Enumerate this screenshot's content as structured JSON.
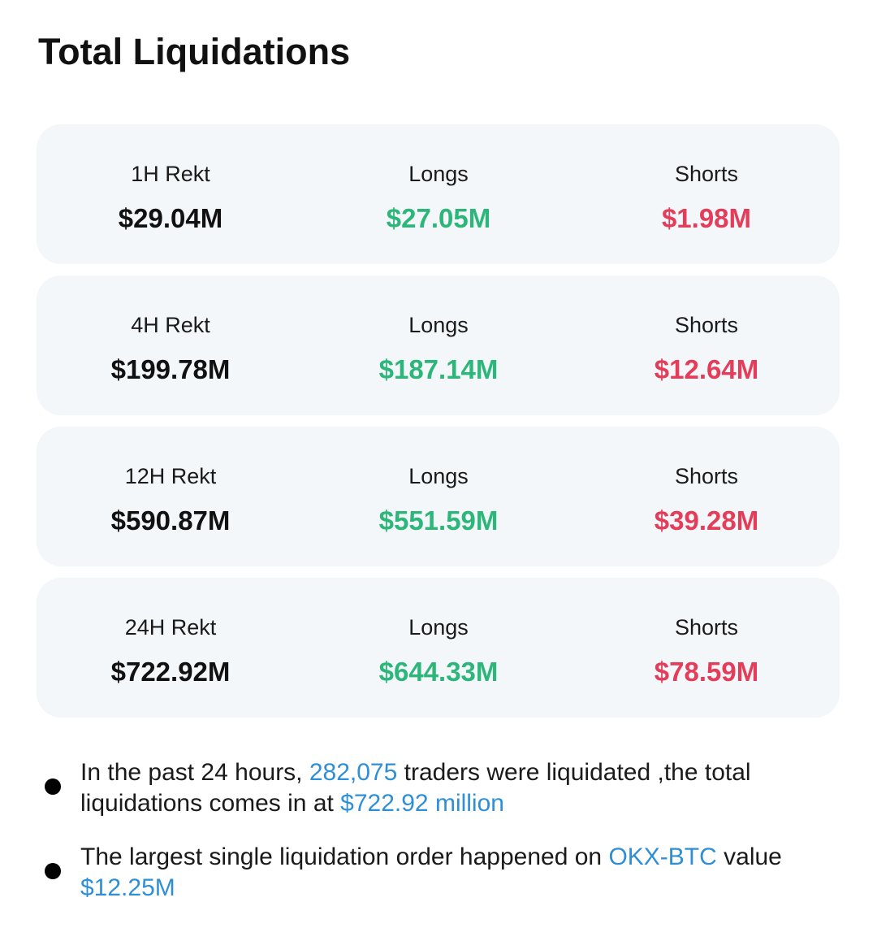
{
  "title": "Total Liquidations",
  "rows": [
    {
      "label": "1H Rekt",
      "total": "$29.04M",
      "longs_label": "Longs",
      "longs": "$27.05M",
      "shorts_label": "Shorts",
      "shorts": "$1.98M"
    },
    {
      "label": "4H Rekt",
      "total": "$199.78M",
      "longs_label": "Longs",
      "longs": "$187.14M",
      "shorts_label": "Shorts",
      "shorts": "$12.64M"
    },
    {
      "label": "12H Rekt",
      "total": "$590.87M",
      "longs_label": "Longs",
      "longs": "$551.59M",
      "shorts_label": "Shorts",
      "shorts": "$39.28M"
    },
    {
      "label": "24H Rekt",
      "total": "$722.92M",
      "longs_label": "Longs",
      "longs": "$644.33M",
      "shorts_label": "Shorts",
      "shorts": "$78.59M"
    }
  ],
  "notes": {
    "n1_a": "In the past 24 hours, ",
    "n1_traders": "282,075",
    "n1_b": " traders were liquidated ,the total liquidations comes in at ",
    "n1_amount": "$722.92 million",
    "n2_a": "The largest single liquidation order happened on ",
    "n2_market": "OKX-BTC",
    "n2_b": " value ",
    "n2_value": "$12.25M"
  },
  "colors": {
    "longs": "#2db679",
    "shorts": "#e43d5a",
    "highlight": "#2f8fd6",
    "card_bg": "#f4f7fa"
  }
}
